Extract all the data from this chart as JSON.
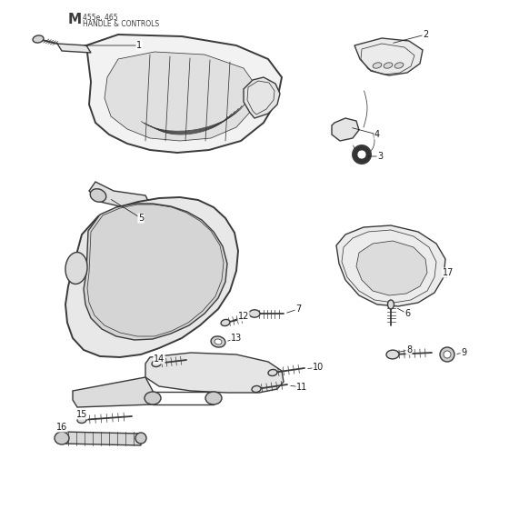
{
  "title_letter": "M",
  "title_model": "455e, 465",
  "title_section": "HANDLE & CONTROLS",
  "background_color": "#ffffff",
  "line_color": "#3a3a3a",
  "label_color": "#1a1a1a",
  "fig_width": 5.6,
  "fig_height": 5.6,
  "dpi": 100,
  "lw_main": 1.0,
  "lw_thin": 0.55,
  "lw_thick": 1.4
}
